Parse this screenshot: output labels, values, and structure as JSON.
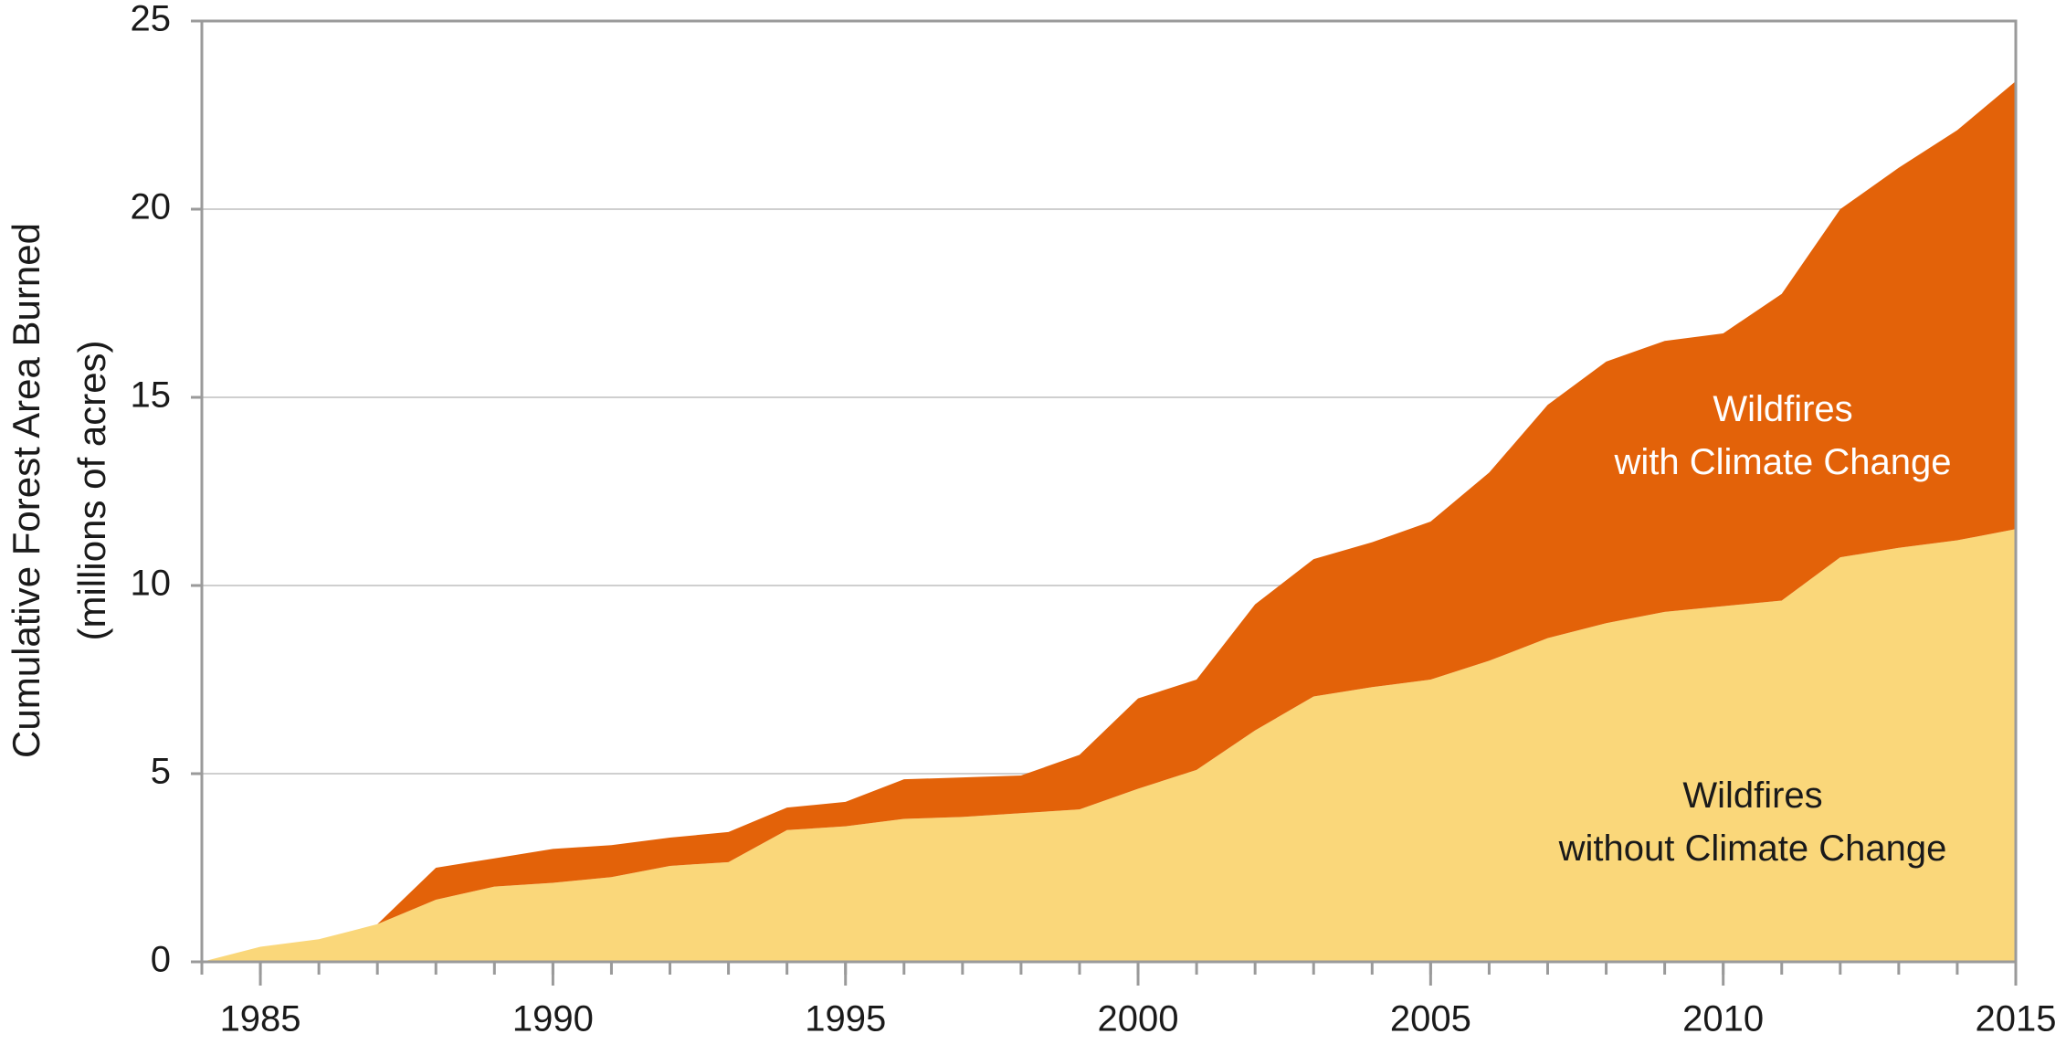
{
  "chart_data": {
    "type": "stacked-area",
    "ylabel": [
      "Cumulative Forest Area Burned",
      "(millions of acres)"
    ],
    "x": [
      1984,
      1985,
      1986,
      1987,
      1988,
      1989,
      1990,
      1991,
      1992,
      1993,
      1994,
      1995,
      1996,
      1997,
      1998,
      1999,
      2000,
      2001,
      2002,
      2003,
      2004,
      2005,
      2006,
      2007,
      2008,
      2009,
      2010,
      2011,
      2012,
      2013,
      2014,
      2015
    ],
    "series": [
      {
        "label": [
          "Wildfires",
          "without Climate Change"
        ],
        "color": "#fad77a",
        "label_color": "#1a1a1a",
        "values": [
          0,
          0.4,
          0.6,
          1.0,
          1.65,
          2.0,
          2.1,
          2.25,
          2.55,
          2.65,
          3.5,
          3.6,
          3.8,
          3.85,
          3.95,
          4.05,
          4.6,
          5.1,
          6.15,
          7.05,
          7.3,
          7.5,
          8.0,
          8.6,
          9.0,
          9.3,
          9.45,
          9.6,
          10.75,
          11.0,
          11.2,
          11.5
        ]
      },
      {
        "label": [
          "Wildfires",
          "with Climate Change"
        ],
        "color": "#e36209",
        "label_color": "#ffffff",
        "values": [
          0,
          0,
          0,
          0,
          0.85,
          0.75,
          0.9,
          0.85,
          0.75,
          0.8,
          0.6,
          0.65,
          1.05,
          1.05,
          1.0,
          1.45,
          2.4,
          2.4,
          3.35,
          3.65,
          3.85,
          4.2,
          5.0,
          6.2,
          6.95,
          7.2,
          7.25,
          8.15,
          9.25,
          10.1,
          10.9,
          11.9
        ]
      }
    ],
    "xlim": [
      1984,
      2015
    ],
    "xticks": [
      1985,
      1990,
      1995,
      2000,
      2005,
      2010,
      2015
    ],
    "ylim": [
      0,
      25
    ],
    "yticks": [
      0,
      5,
      10,
      15,
      20,
      25
    ],
    "grid": true
  }
}
